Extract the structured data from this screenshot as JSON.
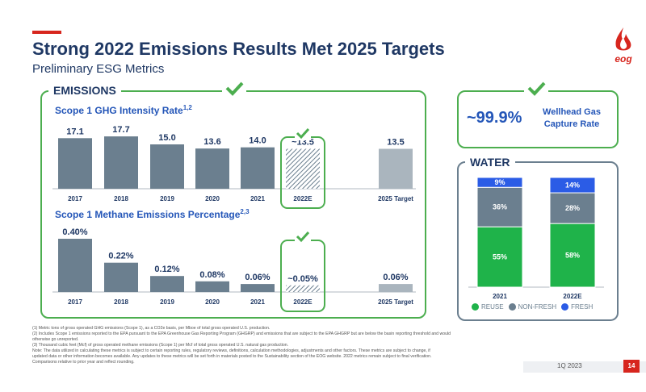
{
  "header": {
    "title": "Strong 2022 Emissions Results Met 2025 Targets",
    "subtitle": "Preliminary ESG Metrics",
    "logo_text": "eog",
    "colors": {
      "accent_red": "#d7261e",
      "navy": "#1f3864",
      "blue": "#2456b8",
      "green": "#4cae4f",
      "gray": "#6b7f8f"
    }
  },
  "emissions_panel": {
    "label": "EMISSIONS",
    "intensity_title": "Scope 1 GHG Intensity Rate",
    "intensity_sup": "1,2",
    "methane_title": "Scope 1 Methane Emissions Percentage",
    "methane_sup": "2,3"
  },
  "gas_capture": {
    "value": "~99.9%",
    "label_line1": "Wellhead Gas",
    "label_line2": "Capture Rate"
  },
  "water_panel": {
    "label": "WATER",
    "legend": [
      {
        "name": "REUSE",
        "color": "#1fb34a"
      },
      {
        "name": "NON-FRESH",
        "color": "#6b7f8f"
      },
      {
        "name": "FRESH",
        "color": "#2b5ce6"
      }
    ]
  },
  "chart_data": [
    {
      "type": "bar",
      "title": "Scope 1 GHG Intensity Rate",
      "categories": [
        "2017",
        "2018",
        "2019",
        "2020",
        "2021",
        "2022E",
        "2025 Target"
      ],
      "values": [
        17.1,
        17.7,
        15.0,
        13.6,
        14.0,
        13.5,
        13.5
      ],
      "value_labels": [
        "17.1",
        "17.7",
        "15.0",
        "13.6",
        "14.0",
        "~13.5",
        "13.5"
      ],
      "ylim": [
        0,
        18
      ],
      "styles": [
        "solid",
        "solid",
        "solid",
        "solid",
        "solid",
        "hatched",
        "target"
      ]
    },
    {
      "type": "bar",
      "title": "Scope 1 Methane Emissions Percentage",
      "categories": [
        "2017",
        "2018",
        "2019",
        "2020",
        "2021",
        "2022E",
        "2025 Target"
      ],
      "values": [
        0.4,
        0.22,
        0.12,
        0.08,
        0.06,
        0.05,
        0.06
      ],
      "value_labels": [
        "0.40%",
        "0.22%",
        "0.12%",
        "0.08%",
        "0.06%",
        "~0.05%",
        "0.06%"
      ],
      "ylim": [
        0,
        0.4
      ],
      "styles": [
        "solid",
        "solid",
        "solid",
        "solid",
        "solid",
        "hatched",
        "target"
      ]
    },
    {
      "type": "bar",
      "stacked": true,
      "title": "",
      "categories": [
        "2021",
        "2022E"
      ],
      "series": [
        {
          "name": "REUSE",
          "values": [
            55,
            58
          ],
          "labels": [
            "55%",
            "58%"
          ]
        },
        {
          "name": "NON-FRESH",
          "values": [
            36,
            28
          ],
          "labels": [
            "36%",
            "28%"
          ]
        },
        {
          "name": "FRESH",
          "values": [
            9,
            14
          ],
          "labels": [
            "9%",
            "14%"
          ]
        }
      ],
      "ylim": [
        0,
        100
      ]
    }
  ],
  "footnotes": [
    "(1)     Metric tons of gross operated GHG emissions (Scope 1), as a CO2e basis, per Mboe of total gross operated U.S. production.",
    "(2)     Includes Scope 1 emissions reported to the EPA pursuant to the EPA Greenhouse Gas Reporting Program (GHGRP) and emissions that are subject to the EPA GHGRP but are below the basin reporting threshold and would",
    "         otherwise go unreported.",
    "(3)     Thousand cubic feet (Mcf) of gross operated methane emissions (Scope 1) per Mcf of total gross operated U.S. natural gas production.",
    "Note: The data utilized in calculating these metrics is subject to certain reporting rules, regulatory reviews, definitions, calculation methodologies, adjustments and other factors. These metrics are subject to change, if",
    "updated data or other information becomes available. Any updates to these metrics will be set forth in materials posted to the Sustainability section of the EOG website. 2022 metrics remain subject to final verification.",
    "Comparisons relative to prior year and reflect rounding."
  ],
  "footer": {
    "quarter": "1Q 2023",
    "page": "14"
  }
}
